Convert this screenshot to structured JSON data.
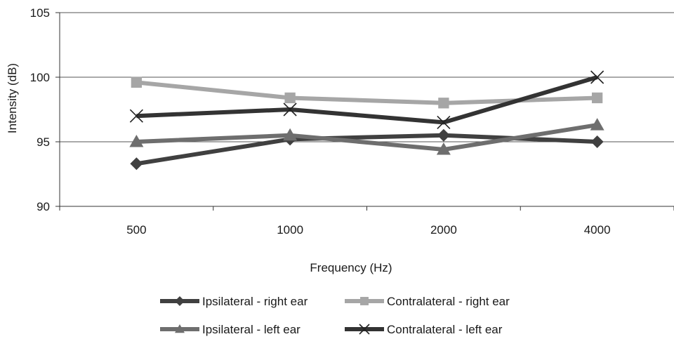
{
  "chart_data": {
    "type": "line",
    "categories": [
      "500",
      "1000",
      "2000",
      "4000"
    ],
    "series": [
      {
        "name": "Ipsilateral - right ear",
        "values": [
          93.3,
          95.2,
          95.5,
          95.0
        ],
        "color": "#404040",
        "marker": "diamond"
      },
      {
        "name": "Contralateral - right ear",
        "values": [
          99.6,
          98.4,
          98.0,
          98.4
        ],
        "color": "#a6a6a6",
        "marker": "square"
      },
      {
        "name": "Ipsilateral - left ear",
        "values": [
          95.0,
          95.5,
          94.4,
          96.3
        ],
        "color": "#6e6e6e",
        "marker": "triangle"
      },
      {
        "name": "Contralateral - left ear",
        "values": [
          97.0,
          97.5,
          96.5,
          100.0
        ],
        "color": "#333333",
        "marker": "x"
      }
    ],
    "yticks": [
      "90",
      "95",
      "100",
      "105"
    ],
    "ylim": [
      90,
      105
    ],
    "xlabel": "Frequency (Hz)",
    "ylabel": "Intensity  (dB)",
    "grid": "horizontal",
    "legend": "bottom"
  }
}
